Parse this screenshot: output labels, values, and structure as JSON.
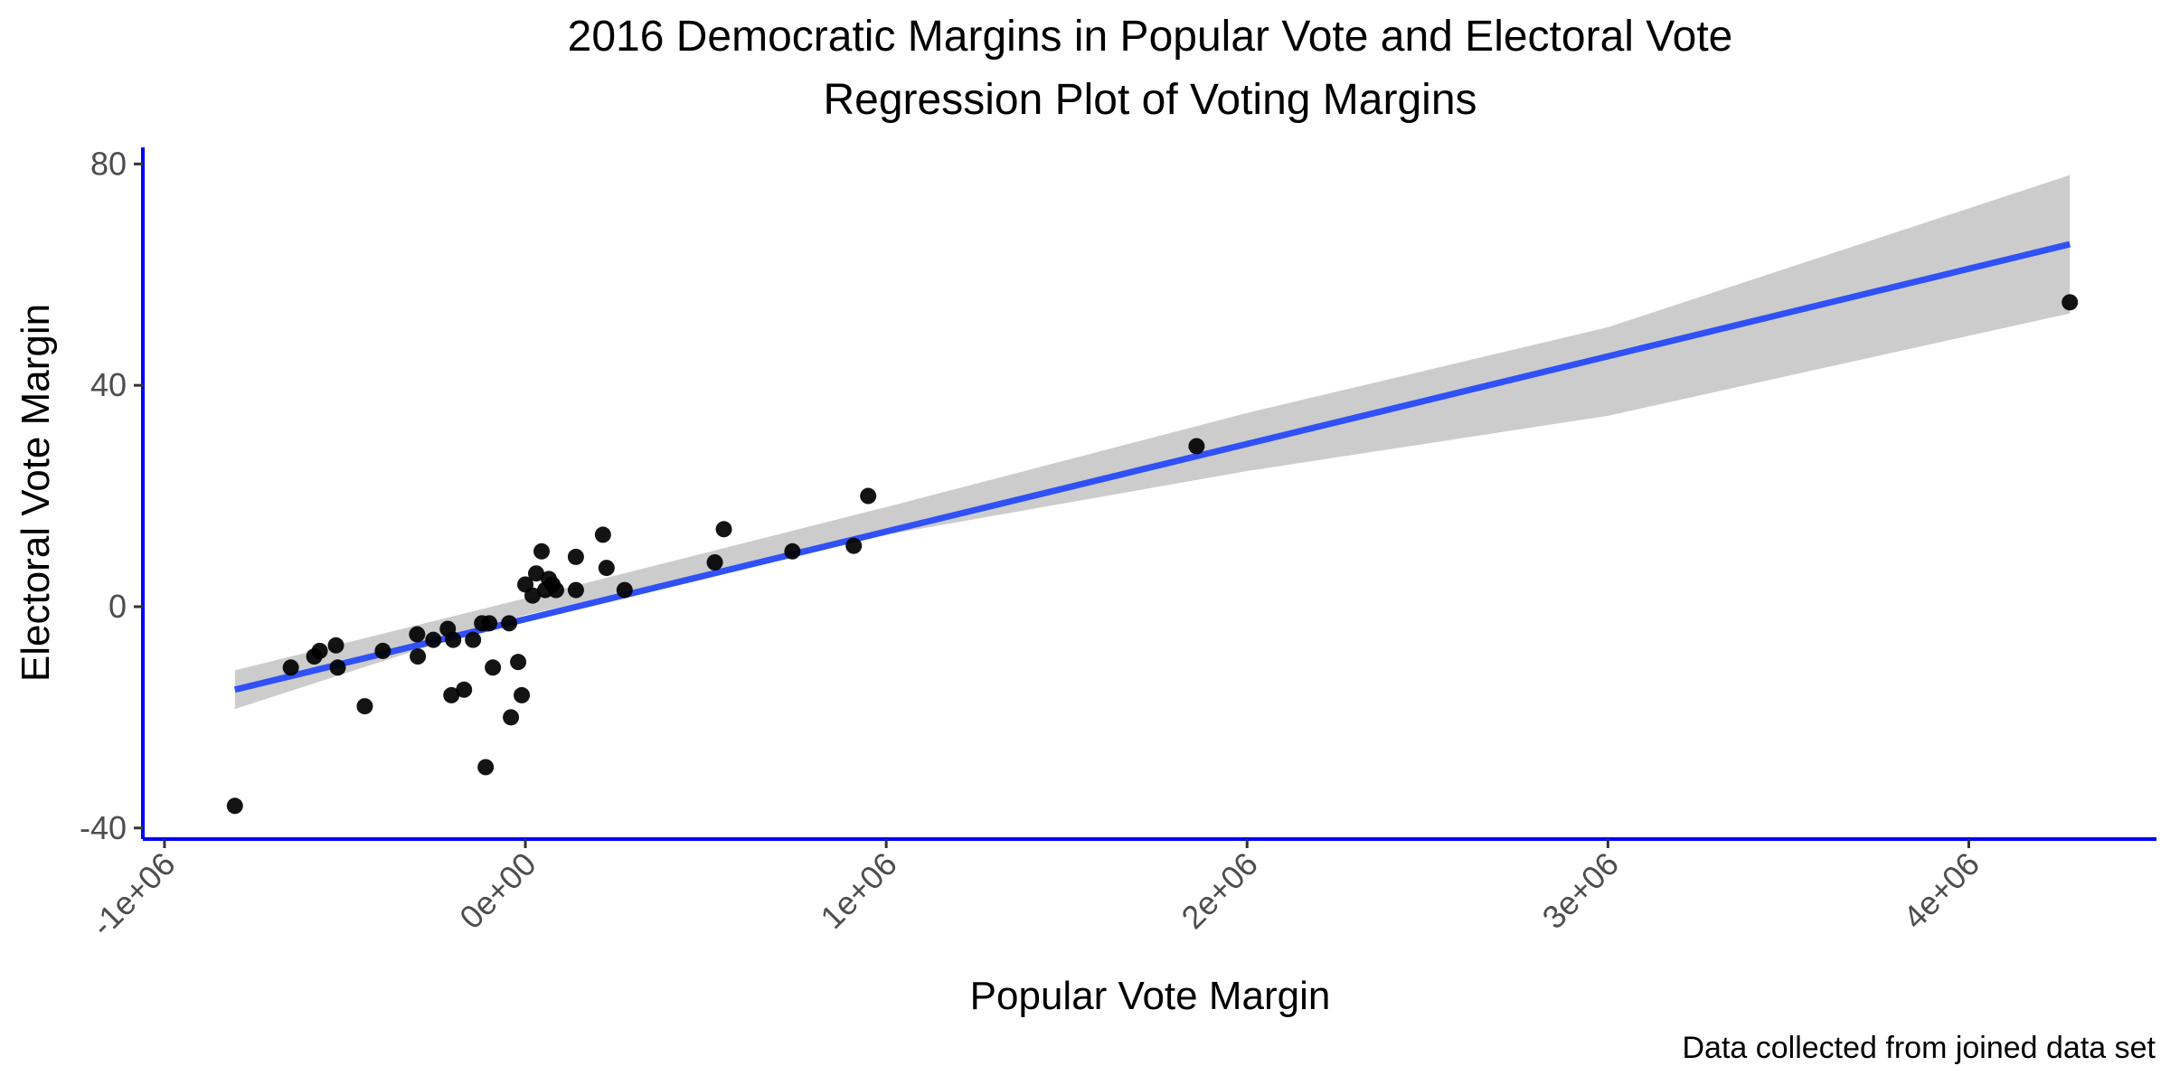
{
  "chart_data": {
    "type": "scatter",
    "title": "2016 Democratic Margins in Popular Vote and Electoral Vote",
    "subtitle": "Regression Plot of Voting Margins",
    "xlabel": "Popular Vote Margin",
    "ylabel": "Electoral Vote Margin",
    "caption": "Data collected from joined data set",
    "xlim": [
      -1060000,
      4520000
    ],
    "ylim": [
      -42,
      83
    ],
    "x_ticks": [
      {
        "value": -1000000,
        "label": "-1e+06"
      },
      {
        "value": 0,
        "label": "0e+00"
      },
      {
        "value": 1000000,
        "label": "1e+06"
      },
      {
        "value": 2000000,
        "label": "2e+06"
      },
      {
        "value": 3000000,
        "label": "3e+06"
      },
      {
        "value": 4000000,
        "label": "4e+06"
      }
    ],
    "y_ticks": [
      {
        "value": -40,
        "label": "-40"
      },
      {
        "value": 0,
        "label": "0"
      },
      {
        "value": 40,
        "label": "40"
      },
      {
        "value": 80,
        "label": "80"
      }
    ],
    "grid": false,
    "colors": {
      "points": "#000000",
      "regression_line": "#3050f8",
      "confidence_band": "#cccccc",
      "axis_line": "#0000ff"
    },
    "points": [
      {
        "x": -805000,
        "y": -36
      },
      {
        "x": -650000,
        "y": -11
      },
      {
        "x": -585000,
        "y": -9
      },
      {
        "x": -570000,
        "y": -8
      },
      {
        "x": -525000,
        "y": -7
      },
      {
        "x": -520000,
        "y": -11
      },
      {
        "x": -445000,
        "y": -18
      },
      {
        "x": -395000,
        "y": -8
      },
      {
        "x": -300000,
        "y": -5
      },
      {
        "x": -298000,
        "y": -9
      },
      {
        "x": -255000,
        "y": -6
      },
      {
        "x": -215000,
        "y": -4
      },
      {
        "x": -205000,
        "y": -16
      },
      {
        "x": -200000,
        "y": -6
      },
      {
        "x": -170000,
        "y": -15
      },
      {
        "x": -145000,
        "y": -6
      },
      {
        "x": -120000,
        "y": -3
      },
      {
        "x": -110000,
        "y": -29
      },
      {
        "x": -100000,
        "y": -3
      },
      {
        "x": -90000,
        "y": -11
      },
      {
        "x": -45000,
        "y": -3
      },
      {
        "x": -40000,
        "y": -20
      },
      {
        "x": -20000,
        "y": -10
      },
      {
        "x": -10000,
        "y": -16
      },
      {
        "x": 0,
        "y": 4
      },
      {
        "x": 20000,
        "y": 2
      },
      {
        "x": 30000,
        "y": 6
      },
      {
        "x": 45000,
        "y": 10
      },
      {
        "x": 55000,
        "y": 3
      },
      {
        "x": 65000,
        "y": 5
      },
      {
        "x": 75000,
        "y": 4
      },
      {
        "x": 85000,
        "y": 3
      },
      {
        "x": 140000,
        "y": 3
      },
      {
        "x": 140000,
        "y": 9
      },
      {
        "x": 215000,
        "y": 13
      },
      {
        "x": 225000,
        "y": 7
      },
      {
        "x": 275000,
        "y": 3
      },
      {
        "x": 525000,
        "y": 8
      },
      {
        "x": 550000,
        "y": 14
      },
      {
        "x": 740000,
        "y": 10
      },
      {
        "x": 910000,
        "y": 11
      },
      {
        "x": 950000,
        "y": 20
      },
      {
        "x": 1860000,
        "y": 29
      },
      {
        "x": 4280000,
        "y": 55
      }
    ],
    "regression": {
      "x": [
        -805000,
        4280000
      ],
      "y": [
        -15,
        65.5
      ],
      "band": [
        {
          "x": -805000,
          "lower": -18.5,
          "upper": -11.5
        },
        {
          "x": 0,
          "lower": -1.5,
          "upper": 1.5
        },
        {
          "x": 1000000,
          "lower": 13,
          "upper": 18
        },
        {
          "x": 2000000,
          "lower": 24.5,
          "upper": 35
        },
        {
          "x": 3000000,
          "lower": 34.5,
          "upper": 50.5
        },
        {
          "x": 4280000,
          "lower": 53,
          "upper": 78
        }
      ]
    }
  }
}
